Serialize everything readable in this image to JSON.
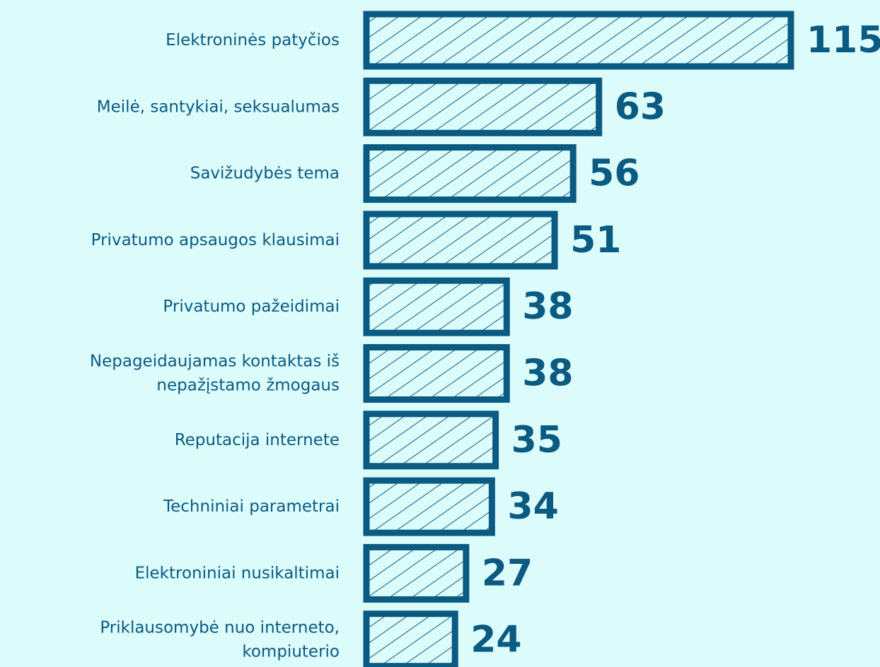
{
  "chart_data": {
    "type": "bar",
    "orientation": "horizontal",
    "color": "#0b5a82",
    "categories": [
      "Elektroninės patyčios",
      "Meilė, santykiai, seksualumas",
      "Savižudybės tema",
      "Privatumo apsaugos klausimai",
      "Privatumo pažeidimai",
      "Nepageidaujamas kontaktas iš\nnepažįstamo žmogaus",
      "Reputacija internete",
      "Techniniai parametrai",
      "Elektroniniai nusikaltimai",
      "Priklausomybė nuo interneto,\nkompiuterio"
    ],
    "values": [
      115,
      63,
      56,
      51,
      38,
      38,
      35,
      34,
      27,
      24
    ]
  }
}
